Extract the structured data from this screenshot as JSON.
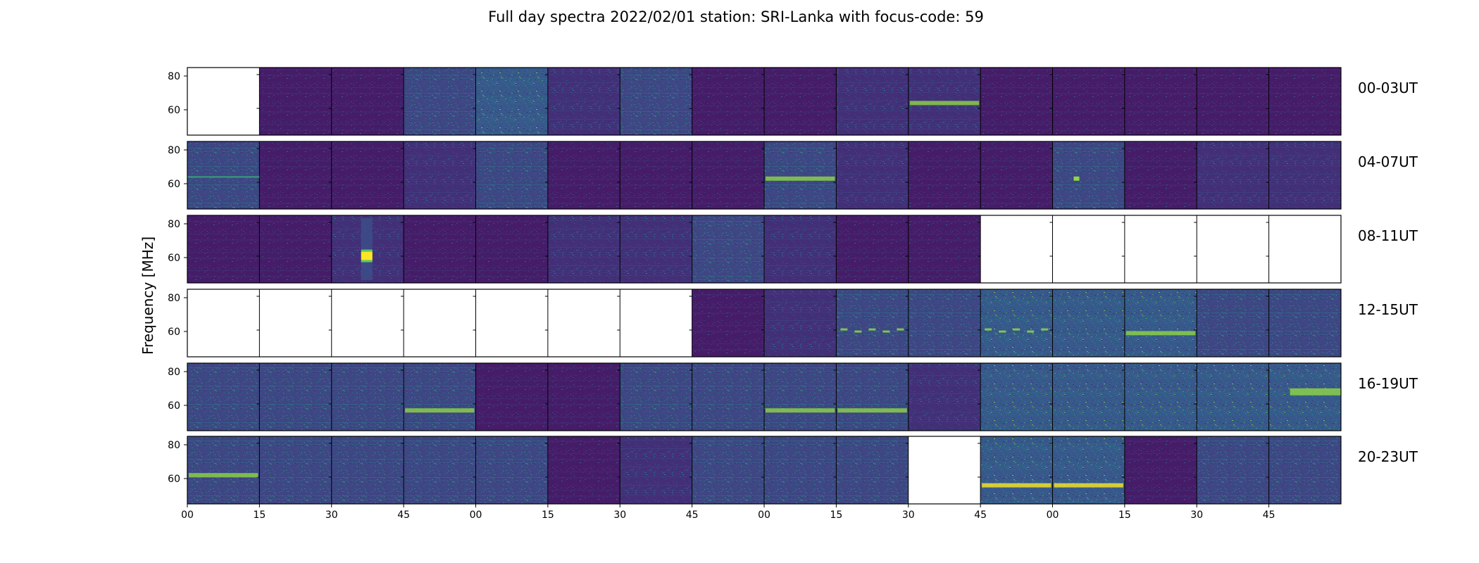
{
  "title": "Full day spectra 2022/02/01 station: SRI-Lanka with focus-code: 59",
  "chart_data": {
    "type": "heatmap",
    "title": "Full day spectra 2022/02/01 station: SRI-Lanka with focus-code: 59",
    "ylabel": "Frequency [MHz]",
    "xlabel": "",
    "ylim": [
      45,
      85
    ],
    "yticks": [
      60,
      80
    ],
    "x_tick_labels": [
      "00",
      "15",
      "30",
      "45",
      "00",
      "15",
      "30",
      "45",
      "00",
      "15",
      "30",
      "45",
      "00",
      "15",
      "30",
      "45"
    ],
    "colormap": "viridis",
    "grid": false,
    "rows": [
      {
        "label": "00-03UT",
        "missing": [
          0
        ],
        "intensity": [
          0,
          1,
          1,
          3,
          4,
          2,
          3,
          1,
          1,
          2,
          2,
          1,
          1,
          1,
          1,
          1
        ],
        "features": [
          {
            "panel": 10,
            "freq": 64,
            "kind": "band",
            "strength": 3
          }
        ]
      },
      {
        "label": "04-07UT",
        "missing": [],
        "intensity": [
          3,
          1,
          1,
          2,
          3,
          1,
          1,
          1,
          3,
          2,
          1,
          1,
          3,
          1,
          2,
          2
        ],
        "features": [
          {
            "panel": 0,
            "freq": 64,
            "kind": "line",
            "strength": 2
          },
          {
            "panel": 8,
            "freq": 63,
            "kind": "band",
            "strength": 3
          },
          {
            "panel": 12,
            "freq": 63,
            "kind": "spot",
            "strength": 3
          }
        ]
      },
      {
        "label": "08-11UT",
        "missing": [
          11,
          12,
          13,
          14,
          15
        ],
        "intensity": [
          1,
          1,
          2,
          1,
          1,
          2,
          2,
          3,
          2,
          1,
          1,
          0,
          0,
          0,
          0,
          0
        ],
        "features": [
          {
            "panel": 2,
            "freq": 61,
            "kind": "burst",
            "strength": 5
          }
        ]
      },
      {
        "label": "12-15UT",
        "missing": [
          0,
          1,
          2,
          3,
          4,
          5,
          6
        ],
        "intensity": [
          0,
          0,
          0,
          0,
          0,
          0,
          0,
          1,
          2,
          3,
          3,
          4,
          4,
          4,
          3,
          3
        ],
        "features": [
          {
            "panel": 9,
            "freq": 61,
            "kind": "dashes",
            "strength": 3
          },
          {
            "panel": 11,
            "freq": 61,
            "kind": "dashes",
            "strength": 3
          },
          {
            "panel": 13,
            "freq": 59,
            "kind": "band",
            "strength": 3
          }
        ]
      },
      {
        "label": "16-19UT",
        "missing": [],
        "intensity": [
          3,
          3,
          3,
          3,
          1,
          1,
          3,
          3,
          3,
          3,
          2,
          4,
          4,
          4,
          4,
          4
        ],
        "features": [
          {
            "panel": 3,
            "freq": 57,
            "kind": "band",
            "strength": 3
          },
          {
            "panel": 8,
            "freq": 57,
            "kind": "band",
            "strength": 3
          },
          {
            "panel": 9,
            "freq": 57,
            "kind": "band",
            "strength": 3
          },
          {
            "panel": 15,
            "freq": 68,
            "kind": "block",
            "strength": 3
          }
        ]
      },
      {
        "label": "20-23UT",
        "missing": [
          10
        ],
        "intensity": [
          3,
          3,
          3,
          3,
          3,
          1,
          2,
          3,
          3,
          3,
          0,
          4,
          4,
          1,
          3,
          3
        ],
        "features": [
          {
            "panel": 0,
            "freq": 62,
            "kind": "band",
            "strength": 3
          },
          {
            "panel": 11,
            "freq": 56,
            "kind": "band",
            "strength": 4
          },
          {
            "panel": 12,
            "freq": 56,
            "kind": "band",
            "strength": 4
          }
        ]
      }
    ]
  }
}
